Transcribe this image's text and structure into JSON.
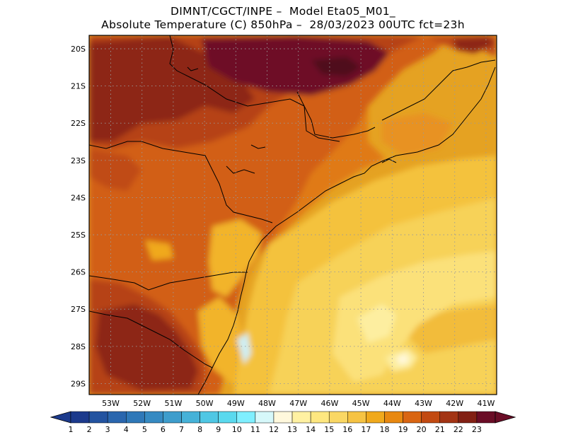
{
  "header": {
    "line1": "DIMNT/CGCT/INPE –  Model Eta05_M01_",
    "line2": "Absolute Temperature (C) 850hPa –  28/03/2023 00UTC fct=23h"
  },
  "map": {
    "lat_labels": [
      "20S",
      "21S",
      "22S",
      "23S",
      "24S",
      "25S",
      "26S",
      "27S",
      "28S",
      "29S"
    ],
    "lon_labels": [
      "53W",
      "52W",
      "51W",
      "50W",
      "49W",
      "48W",
      "47W",
      "46W",
      "45W",
      "44W",
      "43W",
      "42W",
      "41W"
    ]
  },
  "colorbar": {
    "labels": [
      "1",
      "2",
      "3",
      "4",
      "5",
      "6",
      "7",
      "8",
      "9",
      "10",
      "11",
      "12",
      "13",
      "14",
      "15",
      "16",
      "17",
      "18",
      "19",
      "20",
      "21",
      "22",
      "23"
    ],
    "colors": [
      "#1c3a8c",
      "#2353a0",
      "#2a66ae",
      "#2f78b8",
      "#368ac2",
      "#3e9dcc",
      "#46b2d8",
      "#4fc7e4",
      "#5ad9ee",
      "#7fefff",
      "#d6f8fa",
      "#fff8dc",
      "#fff1a2",
      "#fee780",
      "#fad764",
      "#f6c343",
      "#f0a91c",
      "#e88810",
      "#d96512",
      "#c24a12",
      "#a33414",
      "#822014",
      "#6a0d26"
    ]
  }
}
